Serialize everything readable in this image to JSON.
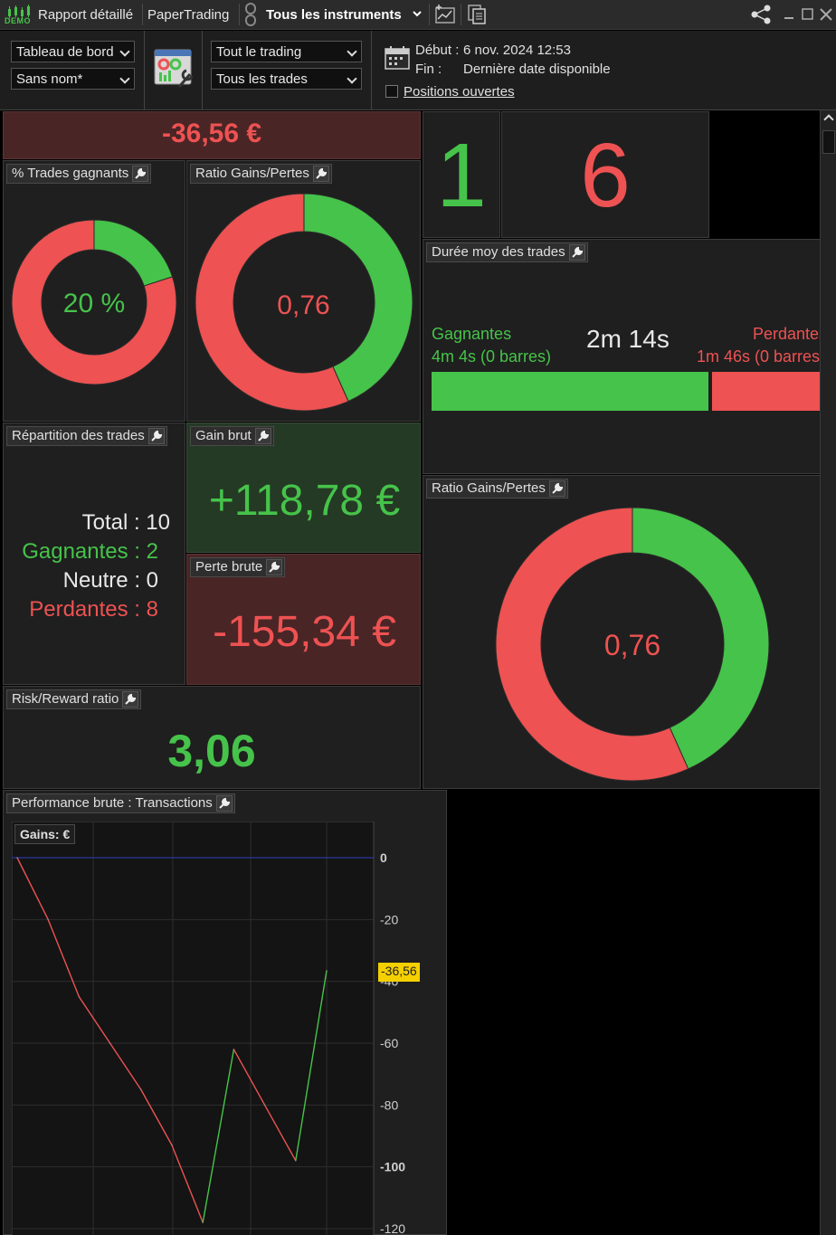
{
  "titlebar": {
    "demo_label": "DEMO",
    "tab_report": "Rapport détaillé",
    "tab_paper": "PaperTrading",
    "instruments": "Tous les instruments"
  },
  "toolbar": {
    "dashboard_select": "Tableau de bord",
    "name_select": "Sans nom*",
    "trading_select": "Tout le trading",
    "trades_select": "Tous les trades",
    "start_label": "Début :",
    "start_value": "6 nov. 2024 12:53",
    "end_label": "Fin :",
    "end_value": "Dernière date disponible",
    "open_positions": "Positions ouvertes"
  },
  "summary": {
    "net": "-36,56 €",
    "count_win": "1",
    "count_loss": "6"
  },
  "win_pct": {
    "title": "% Trades gagnants",
    "value": "20 %",
    "fraction": 0.2
  },
  "ratio_small": {
    "title": "Ratio Gains/Pertes",
    "value": "0,76",
    "win_fraction": 0.433
  },
  "duration": {
    "title": "Durée moy des trades",
    "win_label": "Gagnantes",
    "win_value": "4m 4s (0 barres)",
    "avg": "2m 14s",
    "loss_label": "Perdantes",
    "loss_value": "1m 46s (0 barres)"
  },
  "distribution": {
    "title": "Répartition des trades",
    "total": "Total : 10",
    "wins": "Gagnantes : 2",
    "neutral": "Neutre : 0",
    "losses": "Perdantes : 8"
  },
  "gross_gain": {
    "title": "Gain brut",
    "value": "+118,78 €"
  },
  "gross_loss": {
    "title": "Perte brute",
    "value": "-155,34 €"
  },
  "ratio_big": {
    "title": "Ratio Gains/Pertes",
    "value": "0,76",
    "win_fraction": 0.433
  },
  "risk_reward": {
    "title": "Risk/Reward ratio",
    "value": "3,06"
  },
  "performance": {
    "title": "Performance brute : Transactions",
    "legend": "Gains:  €",
    "current_label": "-36,56"
  },
  "chart_data": {
    "type": "line",
    "x": [
      0,
      1,
      2,
      3,
      4,
      5,
      6,
      7,
      8,
      9,
      10
    ],
    "values": [
      0,
      -20,
      -45,
      -60,
      -75,
      -93,
      -118,
      -62,
      -80,
      -98,
      -36.56
    ],
    "up_color": "#46c34a",
    "down_color": "#ee5252",
    "ylim": [
      -120,
      0
    ],
    "yticks": [
      "0",
      "-20",
      "-40",
      "-60",
      "-80",
      "-100",
      "-120"
    ],
    "grid": true
  }
}
